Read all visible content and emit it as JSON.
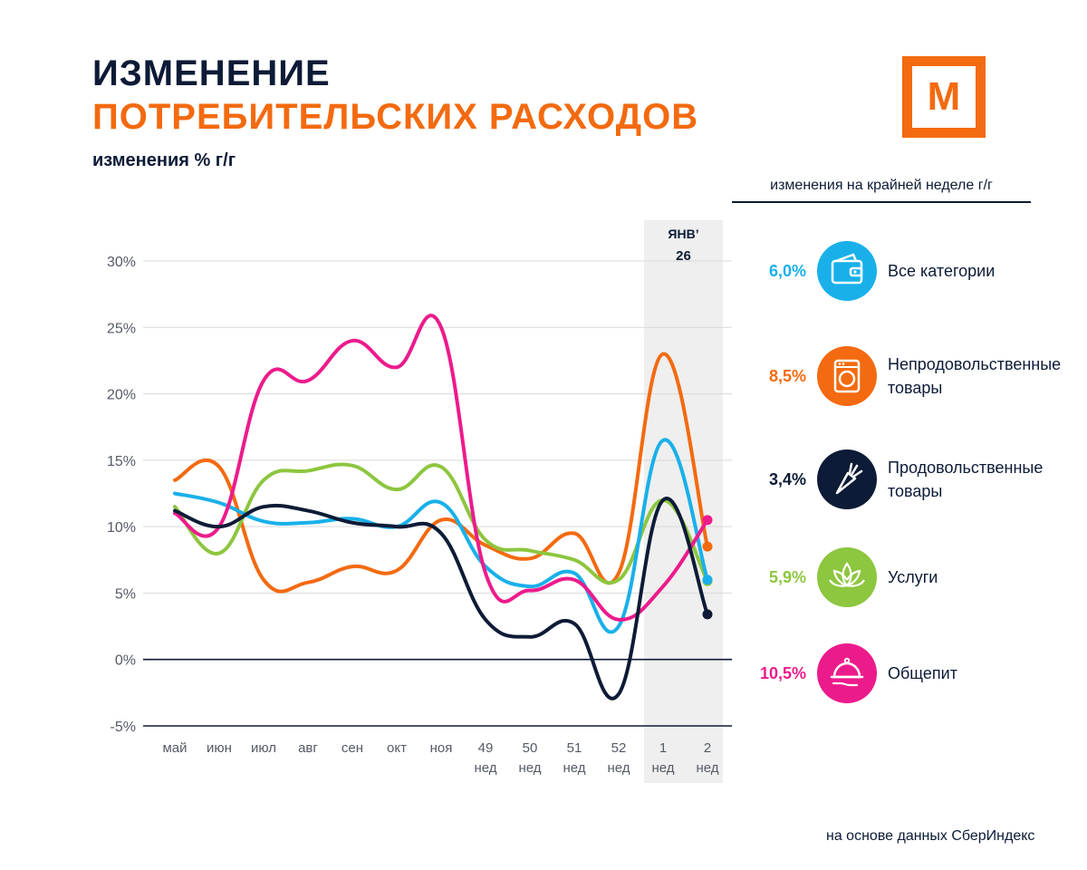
{
  "header": {
    "title_line1": "ИЗМЕНЕНИЕ",
    "title_line2": "ПОТРЕБИТЕЛЬСКИХ РАСХОДОВ",
    "subtitle": "изменения % г/г",
    "logo_letter": "М"
  },
  "legend": {
    "heading": "изменения на крайней неделе г/г",
    "items": [
      {
        "value": "6,0%",
        "label": "Все категории",
        "color": "#19b0ea",
        "icon": "wallet-icon"
      },
      {
        "value": "8,5%",
        "label": "Непродовольственные товары",
        "color": "#f36a10",
        "icon": "washing-machine-icon"
      },
      {
        "value": "3,4%",
        "label": "Продовольственные товары",
        "color": "#0d1b36",
        "icon": "carrot-icon"
      },
      {
        "value": "5,9%",
        "label": "Услуги",
        "color": "#8dc63f",
        "icon": "lotus-icon"
      },
      {
        "value": "10,5%",
        "label": "Общепит",
        "color": "#ec1b8c",
        "icon": "cloche-icon"
      }
    ]
  },
  "source": "на основе данных СберИндекс",
  "chart_data": {
    "type": "line",
    "title": "",
    "ylabel": "изменения % г/г",
    "ylim": [
      -5,
      30
    ],
    "yticks": [
      -5,
      0,
      5,
      10,
      15,
      20,
      25,
      30
    ],
    "ytick_labels": [
      "-5%",
      "0%",
      "5%",
      "10%",
      "15%",
      "20%",
      "25%",
      "30%"
    ],
    "categories": [
      {
        "l1": "май",
        "l2": ""
      },
      {
        "l1": "июн",
        "l2": ""
      },
      {
        "l1": "июл",
        "l2": ""
      },
      {
        "l1": "авг",
        "l2": ""
      },
      {
        "l1": "сен",
        "l2": ""
      },
      {
        "l1": "окт",
        "l2": ""
      },
      {
        "l1": "ноя",
        "l2": ""
      },
      {
        "l1": "49",
        "l2": "нед"
      },
      {
        "l1": "50",
        "l2": "нед"
      },
      {
        "l1": "51",
        "l2": "нед"
      },
      {
        "l1": "52",
        "l2": "нед"
      },
      {
        "l1": "1",
        "l2": "нед"
      },
      {
        "l1": "2",
        "l2": "нед"
      }
    ],
    "highlight": {
      "from_index": 11,
      "to_index": 12,
      "label_line1": "ЯНВ’",
      "label_line2": "26"
    },
    "series": [
      {
        "name": "Непродовольственные товары",
        "color": "#f36a10",
        "values": [
          13.5,
          14.5,
          6.0,
          5.8,
          7.0,
          6.7,
          10.5,
          8.6,
          7.6,
          9.5,
          6.5,
          23.0,
          8.5
        ]
      },
      {
        "name": "Услуги",
        "color": "#8dc63f",
        "values": [
          11.5,
          8.0,
          13.5,
          14.2,
          14.6,
          12.8,
          14.5,
          9.0,
          8.2,
          7.5,
          6.0,
          12.0,
          5.9
        ]
      },
      {
        "name": "Все категории",
        "color": "#19b0ea",
        "values": [
          12.5,
          11.8,
          10.4,
          10.3,
          10.6,
          10.0,
          11.8,
          7.0,
          5.5,
          6.5,
          2.5,
          16.5,
          6.0
        ]
      },
      {
        "name": "Общепит",
        "color": "#ec1b8c",
        "values": [
          11.0,
          10.0,
          21.0,
          21.0,
          24.0,
          22.0,
          25.0,
          6.5,
          5.2,
          6.0,
          3.0,
          5.5,
          10.5
        ]
      },
      {
        "name": "Продовольственные товары",
        "color": "#0d1b36",
        "values": [
          11.2,
          10.0,
          11.5,
          11.2,
          10.3,
          10.0,
          9.5,
          3.0,
          1.7,
          2.7,
          -2.6,
          12.0,
          3.4
        ]
      }
    ]
  }
}
